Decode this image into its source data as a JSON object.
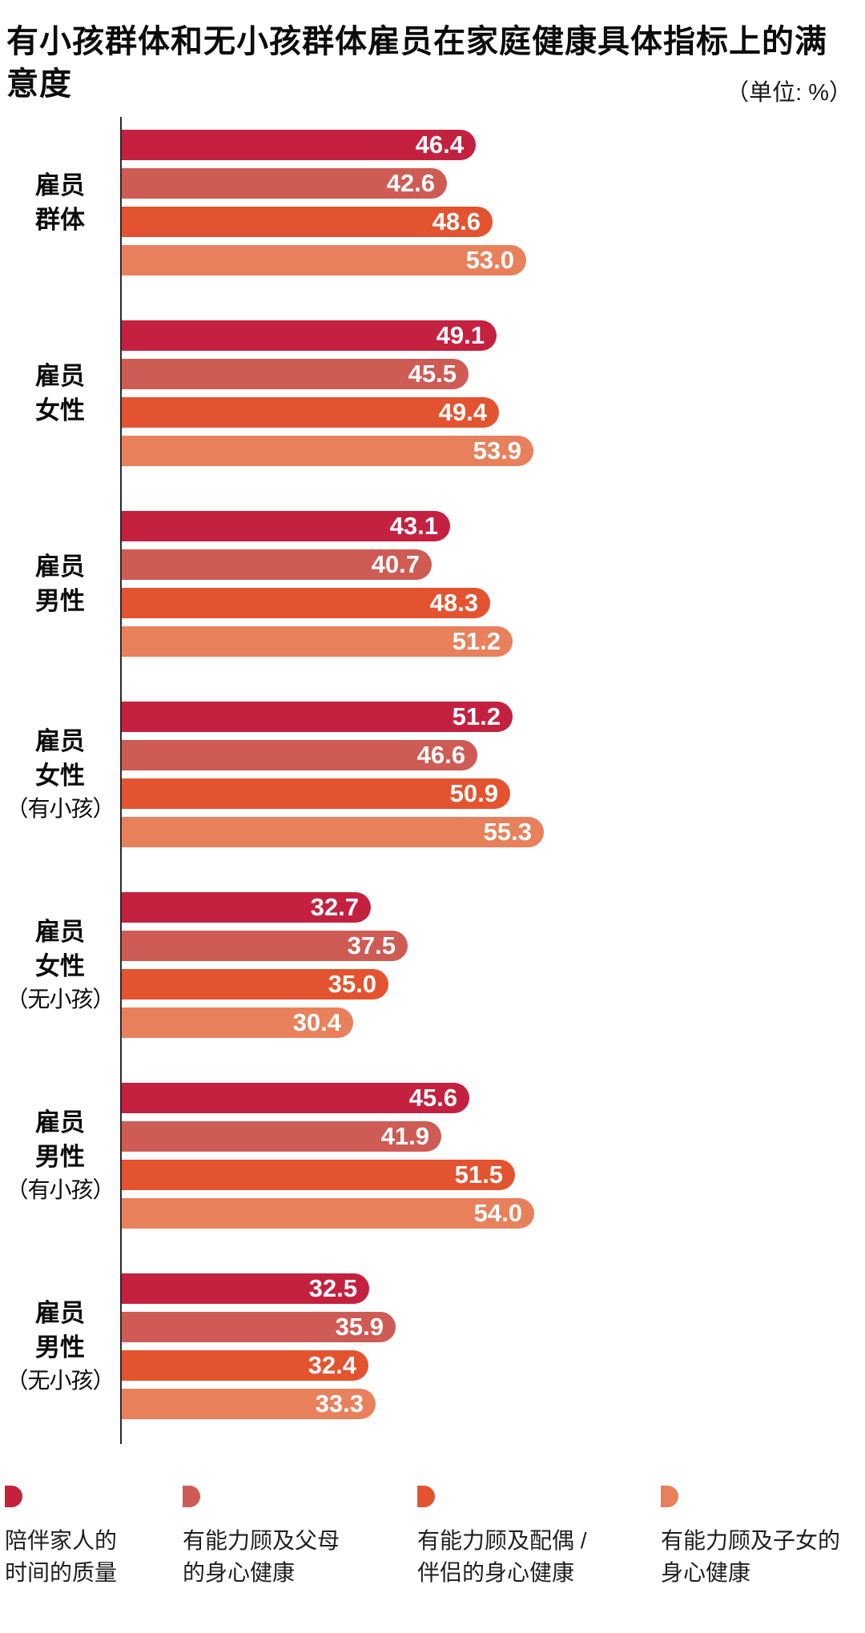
{
  "title": "有小孩群体和无小孩群体雇员在家庭健康具体指标上的满意度",
  "title_lines": [
    "有小孩群体和无小孩群体雇员在家庭健康具体指标上的满",
    "意度"
  ],
  "unit_label": "（单位: %）",
  "chart_data": {
    "type": "bar",
    "orientation": "horizontal",
    "value_unit": "%",
    "xlim": [
      0,
      60
    ],
    "grid": false,
    "legend_position": "bottom",
    "series": [
      {
        "name": "陪伴家人的时间的质量",
        "color": "#C42140"
      },
      {
        "name": "有能力顾及父母的身心健康",
        "color": "#CE5B54"
      },
      {
        "name": "有能力顾及配偶 / 伴侣的身心健康",
        "color": "#E4532F"
      },
      {
        "name": "有能力顾及子女的身心健康",
        "color": "#E9805C"
      }
    ],
    "groups": [
      {
        "label_lines": [
          "雇员",
          "群体"
        ],
        "values": [
          46.4,
          42.6,
          48.6,
          53.0
        ]
      },
      {
        "label_lines": [
          "雇员",
          "女性"
        ],
        "values": [
          49.1,
          45.5,
          49.4,
          53.9
        ]
      },
      {
        "label_lines": [
          "雇员",
          "男性"
        ],
        "values": [
          43.1,
          40.7,
          48.3,
          51.2
        ]
      },
      {
        "label_lines": [
          "雇员",
          "女性",
          "（有小孩）"
        ],
        "values": [
          51.2,
          46.6,
          50.9,
          55.3
        ]
      },
      {
        "label_lines": [
          "雇员",
          "女性",
          "（无小孩）"
        ],
        "values": [
          32.7,
          37.5,
          35.0,
          30.4
        ]
      },
      {
        "label_lines": [
          "雇员",
          "男性",
          "（有小孩）"
        ],
        "values": [
          45.6,
          41.9,
          51.5,
          54.0
        ]
      },
      {
        "label_lines": [
          "雇员",
          "男性",
          "（无小孩）"
        ],
        "values": [
          32.5,
          35.9,
          32.4,
          33.3
        ]
      }
    ],
    "legend": [
      {
        "lines": [
          "陪伴家人的",
          "时间的质量"
        ],
        "color": "#C42140"
      },
      {
        "lines": [
          "有能力顾及父母",
          "的身心健康"
        ],
        "color": "#CE5B54"
      },
      {
        "lines": [
          "有能力顾及配偶 /",
          "伴侣的身心健康"
        ],
        "color": "#E4532F"
      },
      {
        "lines": [
          "有能力顾及子女的",
          "身心健康"
        ],
        "color": "#E9805C"
      }
    ]
  }
}
